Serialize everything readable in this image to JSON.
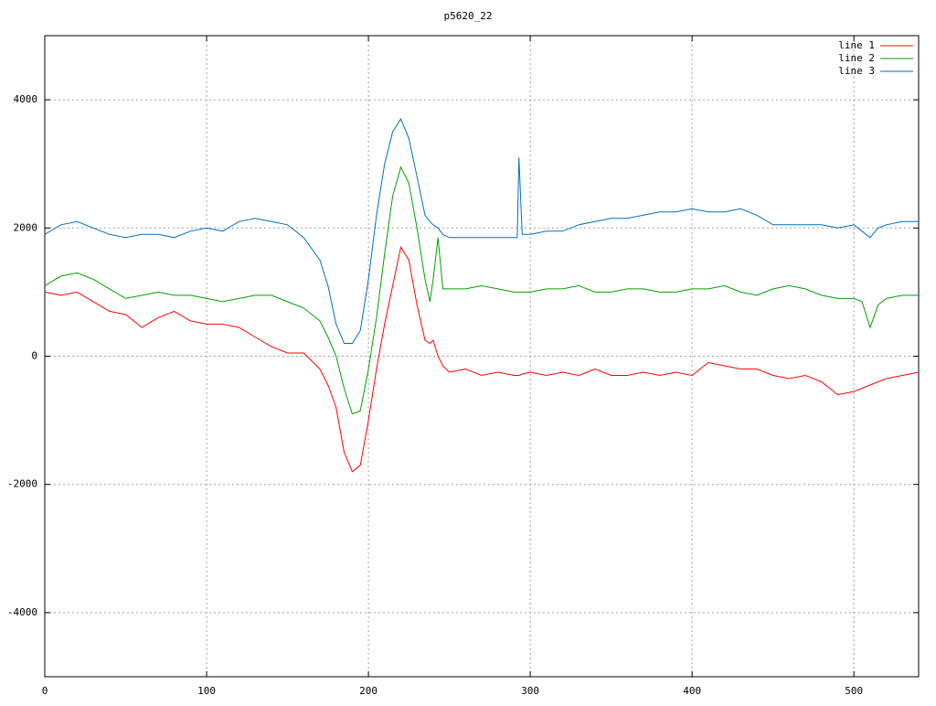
{
  "chart_data": {
    "type": "line",
    "title": "p5620_22",
    "x": [
      0,
      10,
      20,
      30,
      40,
      50,
      60,
      70,
      80,
      90,
      100,
      110,
      120,
      130,
      140,
      150,
      160,
      170,
      175,
      180,
      185,
      190,
      195,
      200,
      205,
      210,
      215,
      220,
      225,
      230,
      235,
      238,
      240,
      243,
      246,
      250,
      260,
      270,
      280,
      290,
      292,
      293,
      295,
      300,
      310,
      320,
      330,
      340,
      350,
      360,
      370,
      380,
      390,
      400,
      410,
      420,
      430,
      440,
      450,
      460,
      470,
      480,
      490,
      500,
      505,
      510,
      515,
      520,
      530,
      540
    ],
    "series": [
      {
        "name": "line 1",
        "color": "#ff0000",
        "values": [
          1000,
          950,
          1000,
          850,
          700,
          650,
          450,
          600,
          700,
          550,
          500,
          500,
          450,
          300,
          150,
          50,
          50,
          -200,
          -450,
          -800,
          -1500,
          -1800,
          -1700,
          -1000,
          -200,
          500,
          1100,
          1700,
          1500,
          800,
          250,
          200,
          250,
          0,
          -150,
          -250,
          -200,
          -300,
          -250,
          -300,
          -300,
          -300,
          -280,
          -250,
          -300,
          -250,
          -300,
          -200,
          -300,
          -300,
          -250,
          -300,
          -250,
          -300,
          -100,
          -150,
          -200,
          -200,
          -300,
          -350,
          -300,
          -400,
          -600,
          -550,
          -500,
          -450,
          -400,
          -350,
          -300,
          -250
        ]
      },
      {
        "name": "line 2",
        "color": "#00a000",
        "values": [
          1100,
          1250,
          1300,
          1200,
          1050,
          900,
          950,
          1000,
          950,
          950,
          900,
          850,
          900,
          950,
          950,
          850,
          750,
          550,
          300,
          0,
          -500,
          -900,
          -850,
          -200,
          600,
          1600,
          2500,
          2950,
          2700,
          2000,
          1200,
          850,
          1200,
          1850,
          1050,
          1050,
          1050,
          1100,
          1050,
          1000,
          1000,
          1000,
          1000,
          1000,
          1050,
          1050,
          1100,
          1000,
          1000,
          1050,
          1050,
          1000,
          1000,
          1050,
          1050,
          1100,
          1000,
          950,
          1050,
          1100,
          1050,
          950,
          900,
          900,
          850,
          450,
          800,
          900,
          950,
          950
        ]
      },
      {
        "name": "line 3",
        "color": "#0070c0",
        "values": [
          1900,
          2050,
          2100,
          2000,
          1900,
          1850,
          1900,
          1900,
          1850,
          1950,
          2000,
          1950,
          2100,
          2150,
          2100,
          2050,
          1850,
          1500,
          1100,
          500,
          200,
          200,
          400,
          1200,
          2200,
          3000,
          3500,
          3700,
          3400,
          2800,
          2200,
          2100,
          2050,
          2000,
          1900,
          1850,
          1850,
          1850,
          1850,
          1850,
          1850,
          3100,
          1900,
          1900,
          1950,
          1950,
          2050,
          2100,
          2150,
          2150,
          2200,
          2250,
          2250,
          2300,
          2250,
          2250,
          2300,
          2200,
          2050,
          2050,
          2050,
          2050,
          2000,
          2050,
          1950,
          1850,
          2000,
          2050,
          2100,
          2100
        ]
      }
    ],
    "xlim": [
      0,
      540
    ],
    "ylim": [
      -5000,
      5000
    ],
    "xticks": [
      0,
      100,
      200,
      300,
      400,
      500
    ],
    "yticks": [
      -4000,
      -2000,
      0,
      2000,
      4000
    ],
    "grid": true,
    "legend": "top-right"
  }
}
